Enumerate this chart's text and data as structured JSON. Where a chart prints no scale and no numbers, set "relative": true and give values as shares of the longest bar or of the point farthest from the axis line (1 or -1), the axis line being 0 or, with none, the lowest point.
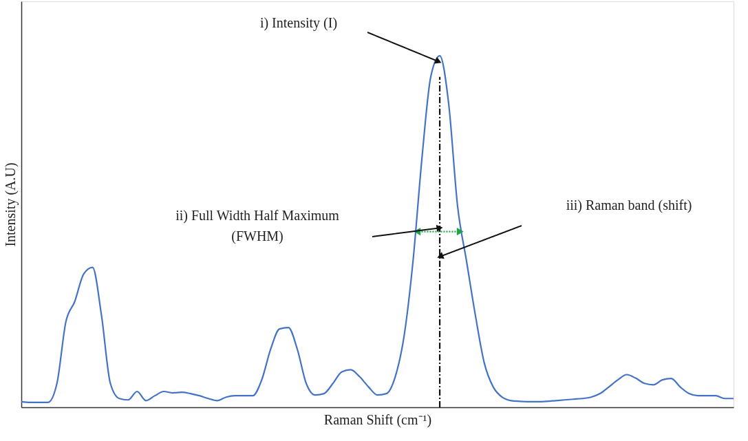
{
  "chart_data": {
    "type": "line",
    "relative": true,
    "xlabel": "Raman Shift (cm⁻¹)",
    "ylabel": "Intensity (A.U)",
    "grid": false,
    "categories": [
      null,
      null,
      null,
      null,
      null,
      null,
      null,
      null,
      null,
      null,
      null,
      null,
      null,
      null,
      null,
      null,
      null,
      null,
      null,
      null,
      null,
      null,
      null,
      null,
      null,
      null,
      null,
      null,
      null,
      null,
      null,
      null,
      null,
      null,
      null,
      null,
      null,
      null,
      null,
      null,
      null,
      null,
      null,
      null,
      null,
      null,
      null,
      null,
      null,
      null,
      null,
      null,
      null,
      null,
      null,
      null,
      null,
      null,
      null,
      null,
      null,
      null,
      null,
      null,
      null,
      null,
      null,
      null,
      null,
      null,
      null,
      null,
      null,
      null,
      null,
      null,
      null,
      null,
      null,
      null,
      null
    ],
    "series": [
      {
        "color": "#4472c4",
        "values": [
          0.016,
          0.014,
          0.014,
          0.014,
          0.068,
          0.243,
          0.301,
          0.379,
          0.398,
          0.262,
          0.068,
          0.025,
          0.021,
          0.045,
          0.019,
          0.033,
          0.045,
          0.041,
          0.043,
          0.039,
          0.033,
          0.025,
          0.019,
          0.029,
          0.033,
          0.033,
          0.033,
          0.078,
          0.165,
          0.223,
          0.227,
          0.165,
          0.068,
          0.035,
          0.039,
          0.068,
          0.101,
          0.107,
          0.087,
          0.058,
          0.035,
          0.039,
          0.087,
          0.204,
          0.417,
          0.709,
          0.942,
          1,
          0.864,
          0.573,
          0.417,
          0.262,
          0.126,
          0.058,
          0.029,
          0.019,
          0.017,
          0.016,
          0.016,
          0.017,
          0.019,
          0.021,
          0.023,
          0.025,
          0.029,
          0.039,
          0.058,
          0.078,
          0.093,
          0.083,
          0.068,
          0.064,
          0.078,
          0.082,
          0.058,
          0.039,
          0.033,
          0.033,
          0.033,
          0.025,
          0.025
        ]
      }
    ],
    "annotations": [
      "i) Intensity (I)",
      "ii) Full Width Half Maximum\n(FWHM)",
      "iii) Raman band (shift)"
    ]
  }
}
